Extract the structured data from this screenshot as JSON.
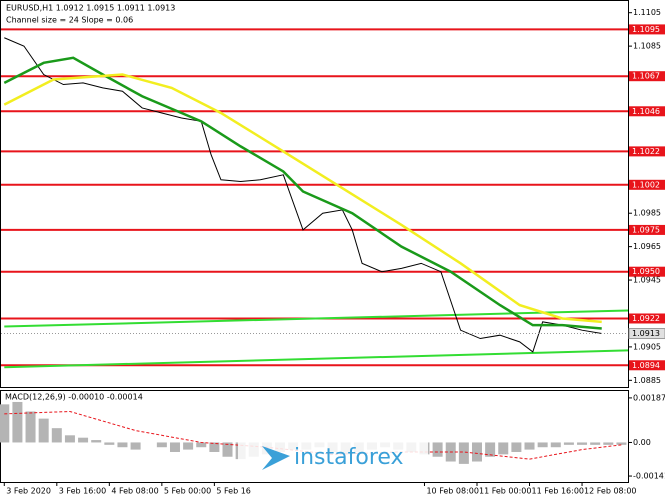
{
  "chart_data": [
    {
      "type": "line",
      "title": "EURUSD,H1  1.0912 1.0915 1.0911 1.0913",
      "subtitle": "Channel size = 24 Slope = 0.06",
      "xlim": [
        -1,
        190
      ],
      "ylim": [
        1.0881,
        1.1112
      ],
      "yticks": [
        1.1105,
        1.1085,
        1.0985,
        1.0965,
        1.0945,
        1.0905,
        1.0885
      ],
      "xticks": [
        {
          "value": 0,
          "label": "3 Feb 2020"
        },
        {
          "value": 16,
          "label": "3 Feb 16:00"
        },
        {
          "value": 32,
          "label": "4 Feb 08:00"
        },
        {
          "value": 48,
          "label": "5 Feb 00:00"
        },
        {
          "value": 64,
          "label": "5 Feb 16"
        },
        {
          "value": 128,
          "label": "10 Feb 08:00"
        },
        {
          "value": 144,
          "label": "11 Feb 00:00"
        },
        {
          "value": 160,
          "label": "11 Feb 16:00"
        },
        {
          "value": 176,
          "label": "12 Feb 08:00"
        }
      ],
      "series": [
        {
          "color": "#000000",
          "x": [
            0,
            6,
            12,
            18,
            24,
            30,
            36,
            42,
            48,
            54,
            60,
            63,
            66,
            72,
            78,
            85,
            91,
            97,
            103,
            106,
            109,
            115,
            121,
            127,
            133,
            139,
            145,
            151,
            157,
            161,
            164,
            170,
            176,
            182
          ],
          "values": [
            1.109,
            1.1085,
            1.1068,
            1.1062,
            1.1063,
            1.106,
            1.1058,
            1.1048,
            1.1045,
            1.1042,
            1.104,
            1.102,
            1.1005,
            1.1004,
            1.1005,
            1.1008,
            1.0975,
            1.0985,
            1.0987,
            1.0975,
            1.0955,
            1.095,
            1.0952,
            1.0955,
            1.095,
            1.0915,
            1.091,
            1.0912,
            1.0908,
            1.0902,
            1.092,
            1.0918,
            1.0915,
            1.0913
          ]
        },
        {
          "color": "#1a9a1a",
          "x": [
            0,
            12,
            21,
            30,
            42,
            60,
            72,
            85,
            91,
            106,
            121,
            136,
            151,
            161,
            170,
            182
          ],
          "values": [
            1.1063,
            1.1075,
            1.1078,
            1.1068,
            1.1055,
            1.104,
            1.1025,
            1.101,
            1.0998,
            1.0985,
            1.0965,
            1.095,
            1.093,
            1.0918,
            1.0918,
            1.0916
          ]
        },
        {
          "color": "#f2ee20",
          "x": [
            0,
            15,
            36,
            51,
            66,
            85,
            103,
            121,
            139,
            157,
            170,
            182
          ],
          "values": [
            1.105,
            1.1065,
            1.1068,
            1.106,
            1.1045,
            1.1022,
            1.1,
            1.0978,
            1.0955,
            1.093,
            1.0922,
            1.092
          ]
        }
      ],
      "channel": [
        {
          "color": "#33dd33",
          "x": [
            0,
            190
          ],
          "values": [
            1.09172,
            1.09268
          ]
        },
        {
          "color": "#33dd33",
          "x": [
            0,
            190
          ],
          "values": [
            1.08928,
            1.09029
          ]
        }
      ],
      "levels": {
        "color": "#e8141b",
        "values": [
          1.1095,
          1.1067,
          1.1046,
          1.1022,
          1.1002,
          1.0975,
          1.095,
          1.0922,
          1.0894
        ],
        "value_labels": [
          "1.1095",
          "1.1067",
          "1.1046",
          "1.1022",
          "1.1002",
          "1.0975",
          "1.0950",
          "1.0922",
          "1.0894"
        ]
      },
      "current_price": 1.0913,
      "watermark": "instaforex"
    },
    {
      "type": "bar",
      "title": "MACD(12,26,9) -0.00010 -0.00014",
      "ylim": [
        -0.00166,
        0.00216
      ],
      "yticks": [
        0.00187,
        {
          "value": 0,
          "label": "0.00"
        },
        -0.00141
      ],
      "histogram": {
        "color": "#b4b4b4",
        "x": [
          0,
          4,
          8,
          12,
          16,
          20,
          24,
          28,
          32,
          36,
          40,
          44,
          48,
          52,
          56,
          60,
          64,
          68,
          72,
          76,
          80,
          84,
          88,
          92,
          96,
          100,
          104,
          108,
          112,
          116,
          120,
          124,
          128,
          132,
          136,
          140,
          144,
          148,
          152,
          156,
          160,
          164,
          168,
          172,
          176,
          180,
          184,
          188
        ],
        "values": [
          0.0016,
          0.0017,
          0.0013,
          0.001,
          0.0006,
          0.0003,
          0.0002,
          0.0001,
          -0.0001,
          -0.0002,
          -0.0003,
          0.0,
          -0.0002,
          -0.0004,
          -0.0003,
          -0.0002,
          -0.0004,
          -0.0006,
          -0.0007,
          -0.0006,
          -0.0005,
          -0.0004,
          -0.0003,
          -0.0003,
          -0.0002,
          -0.0004,
          -0.0005,
          -0.0004,
          -0.0003,
          -0.0002,
          -0.0003,
          -0.0004,
          -0.0005,
          -0.0006,
          -0.0008,
          -0.0009,
          -0.0008,
          -0.0006,
          -0.0005,
          -0.0004,
          -0.0003,
          -0.0002,
          -0.0002,
          -0.0001,
          -0.0001,
          -0.0001,
          -0.0001,
          -0.0001
        ]
      },
      "signal": {
        "color": "#e8141b",
        "x": [
          0,
          20,
          40,
          60,
          80,
          100,
          120,
          140,
          160,
          176,
          188
        ],
        "values": [
          0.0012,
          0.0013,
          0.0005,
          0.0,
          -0.0002,
          -0.0005,
          -0.0004,
          -0.0004,
          -0.0007,
          -0.0003,
          -0.0001
        ]
      }
    }
  ]
}
